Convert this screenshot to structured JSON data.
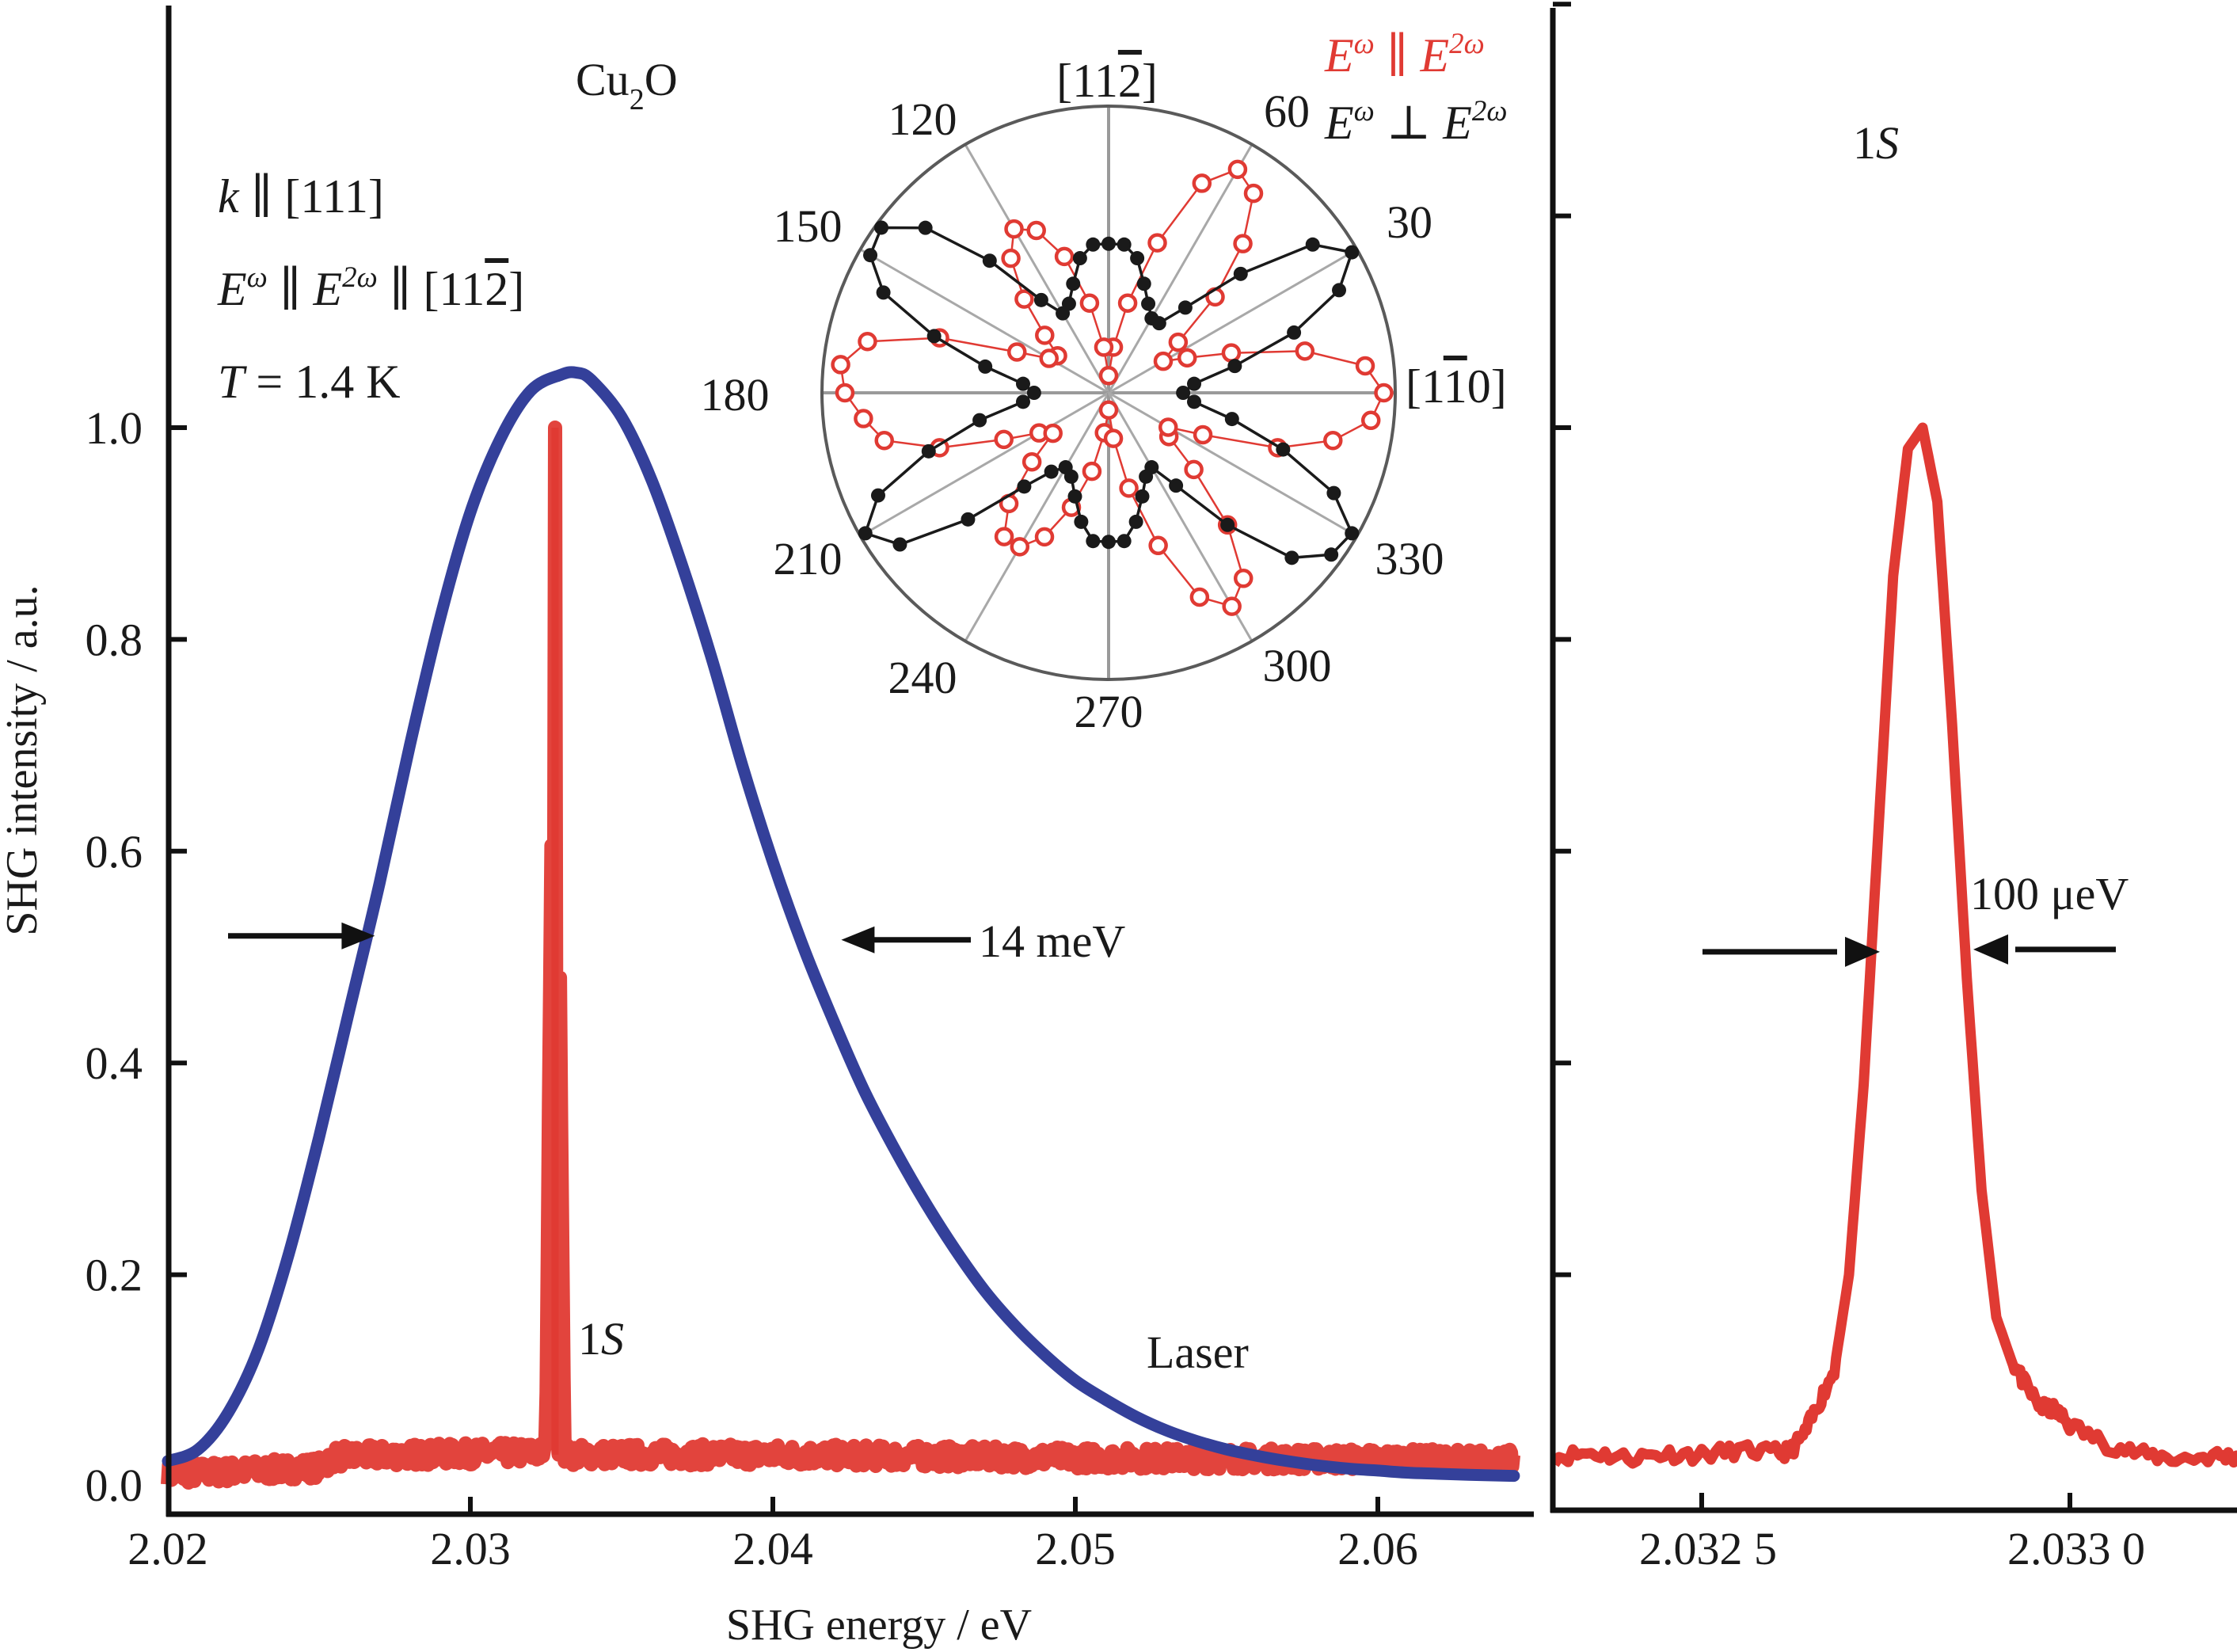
{
  "chart_data": [
    {
      "id": "main-spectrum",
      "type": "line",
      "xlabel": "SHG energy / eV",
      "ylabel": "SHG intensity / a.u.",
      "xlim": [
        2.02,
        2.0645
      ],
      "ylim": [
        0.0,
        1.4
      ],
      "x_ticks": [
        2.02,
        2.03,
        2.04,
        2.05,
        2.06
      ],
      "x_tick_labels": [
        "2.02",
        "2.03",
        "2.04",
        "2.05",
        "2.06"
      ],
      "y_ticks": [
        0.0,
        0.2,
        0.4,
        0.6,
        0.8,
        1.0
      ],
      "y_tick_labels": [
        "0.0",
        "0.2",
        "0.4",
        "0.6",
        "0.8",
        "1.0"
      ],
      "grid": false,
      "series": [
        {
          "name": "Laser",
          "color": "#34409a",
          "x": [
            2.02,
            2.021,
            2.022,
            2.023,
            2.024,
            2.025,
            2.026,
            2.027,
            2.028,
            2.029,
            2.03,
            2.031,
            2.032,
            2.033,
            2.0335,
            2.034,
            2.035,
            2.036,
            2.037,
            2.038,
            2.039,
            2.04,
            2.041,
            2.042,
            2.043,
            2.044,
            2.045,
            2.046,
            2.047,
            2.048,
            2.049,
            2.05,
            2.051,
            2.052,
            2.053,
            2.054,
            2.055,
            2.056,
            2.057,
            2.058,
            2.059,
            2.06,
            2.061,
            2.062,
            2.063,
            2.0645
          ],
          "y": [
            0.024,
            0.035,
            0.07,
            0.13,
            0.22,
            0.33,
            0.45,
            0.57,
            0.7,
            0.82,
            0.92,
            0.99,
            1.035,
            1.05,
            1.052,
            1.045,
            1.01,
            0.95,
            0.87,
            0.78,
            0.68,
            0.59,
            0.51,
            0.44,
            0.375,
            0.32,
            0.27,
            0.225,
            0.185,
            0.152,
            0.124,
            0.1,
            0.082,
            0.066,
            0.053,
            0.043,
            0.035,
            0.029,
            0.024,
            0.02,
            0.017,
            0.015,
            0.013,
            0.012,
            0.011,
            0.01
          ]
        },
        {
          "name": "1S",
          "color": "#e03a33",
          "baseline": [
            [
              2.02,
              0.012
            ],
            [
              2.023,
              0.015
            ],
            [
              2.025,
              0.018
            ],
            [
              2.0255,
              0.028
            ],
            [
              2.028,
              0.03
            ],
            [
              2.0325,
              0.032
            ],
            [
              2.0328,
              1.0
            ],
            [
              2.0331,
              0.03
            ],
            [
              2.04,
              0.03
            ],
            [
              2.05,
              0.027
            ],
            [
              2.0645,
              0.025
            ]
          ],
          "peak_energy": 2.0328,
          "peak_intensity": 1.0,
          "noise_amplitude": 0.01
        }
      ],
      "annotations": {
        "material": {
          "base": "Cu",
          "sub": "2",
          "tail": "O"
        },
        "conditions": [
          {
            "parts": [
              {
                "t": "k",
                "i": true
              },
              {
                "t": " ∥ [111]"
              }
            ]
          },
          {
            "parts": [
              {
                "t": "E",
                "i": true
              },
              {
                "t": "ω",
                "i": true,
                "sup": true
              },
              {
                "t": " ∥ "
              },
              {
                "t": "E",
                "i": true
              },
              {
                "t": "2ω",
                "i": true,
                "sup": true
              },
              {
                "t": " ∥ [11"
              },
              {
                "t": "2",
                "over": true
              },
              {
                "t": "]"
              }
            ]
          },
          {
            "parts": [
              {
                "t": "T",
                "i": true
              },
              {
                "t": " = 1.4 K"
              }
            ]
          }
        ],
        "peak_label": {
          "num": "1",
          "letter": "S"
        },
        "laser_label": "Laser",
        "fwhm_label": "14 meV",
        "fwhm_level": 0.52,
        "fwhm_left_energy": 2.027,
        "fwhm_right_energy": 2.042
      }
    },
    {
      "id": "zoom-spectrum",
      "type": "line",
      "xlim": [
        2.0323,
        2.03323
      ],
      "ylim": [
        0.0,
        1.4
      ],
      "x_ticks": [
        2.0325,
        2.033
      ],
      "x_tick_labels": [
        "2.032 5",
        "2.033 0"
      ],
      "y_ticks": [
        0.2,
        0.4,
        0.6,
        0.8,
        1.0,
        1.2,
        1.4
      ],
      "grid": false,
      "series": [
        {
          "name": "1S",
          "color": "#e03a33",
          "x": [
            2.0323,
            2.03235,
            2.0324,
            2.03245,
            2.0325,
            2.03255,
            2.0326,
            2.03262,
            2.03264,
            2.03266,
            2.03268,
            2.0327,
            2.03272,
            2.03274,
            2.03276,
            2.03278,
            2.0328,
            2.03282,
            2.03284,
            2.03286,
            2.03288,
            2.0329,
            2.03292,
            2.03294,
            2.03296,
            2.03298,
            2.033,
            2.03305,
            2.0331,
            2.03315,
            2.0332,
            2.03323
          ],
          "y": [
            0.028,
            0.032,
            0.027,
            0.031,
            0.03,
            0.034,
            0.032,
            0.033,
            0.05,
            0.08,
            0.11,
            0.2,
            0.38,
            0.62,
            0.86,
            0.98,
            1.0,
            0.93,
            0.72,
            0.48,
            0.28,
            0.16,
            0.12,
            0.095,
            0.075,
            0.072,
            0.058,
            0.04,
            0.03,
            0.026,
            0.029,
            0.028
          ]
        }
      ],
      "annotations": {
        "peak_label": {
          "num": "1",
          "letter": "S"
        },
        "fwhm_label": "100 μeV",
        "fwhm_level": 0.505,
        "fwhm_left_energy": 2.03273,
        "fwhm_right_energy": 2.03283
      }
    },
    {
      "id": "polar-inset",
      "type": "scatter",
      "subtype": "polar",
      "angle_labels": [
        {
          "deg": 30,
          "label": "30"
        },
        {
          "deg": 60,
          "label": "60"
        },
        {
          "deg": 120,
          "label": "120"
        },
        {
          "deg": 150,
          "label": "150"
        },
        {
          "deg": 180,
          "label": "180"
        },
        {
          "deg": 210,
          "label": "210"
        },
        {
          "deg": 240,
          "label": "240"
        },
        {
          "deg": 270,
          "label": "270"
        },
        {
          "deg": 300,
          "label": "300"
        },
        {
          "deg": 330,
          "label": "330"
        }
      ],
      "direction_labels": {
        "top": {
          "pre": "[11",
          "over": "2",
          "post": "]"
        },
        "right": {
          "pre": "[1",
          "over": "1",
          "post": "0]"
        }
      },
      "spokes_deg": [
        0,
        30,
        60,
        90,
        120,
        150,
        180,
        210,
        240,
        270,
        300,
        330
      ],
      "rmax": 1.0,
      "legend": [
        {
          "key": "parallel",
          "color": "#e03a33",
          "marker": "open-circle",
          "label_parts": [
            {
              "t": "E",
              "i": true
            },
            {
              "t": "ω",
              "i": true,
              "sup": true
            },
            {
              "t": " ∥ "
            },
            {
              "t": "E",
              "i": true
            },
            {
              "t": "2ω",
              "i": true,
              "sup": true
            }
          ]
        },
        {
          "key": "perpendicular",
          "color": "#1a1a1a",
          "marker": "filled-circle",
          "label_parts": [
            {
              "t": "E",
              "i": true
            },
            {
              "t": "ω",
              "i": true,
              "sup": true
            },
            {
              "t": " ⊥ "
            },
            {
              "t": "E",
              "i": true
            },
            {
              "t": "2ω",
              "i": true,
              "sup": true
            }
          ]
        }
      ],
      "legend_position": "top-right",
      "series": [
        {
          "name": "E∥",
          "color": "#e03a33",
          "angles_deg": [
            0,
            6,
            12,
            18,
            24,
            30,
            36,
            42,
            48,
            54,
            60,
            66,
            72,
            78,
            84,
            90,
            96,
            102,
            108,
            114,
            120,
            126,
            132,
            138,
            144,
            150,
            156,
            162,
            168,
            174,
            180,
            186,
            192,
            198,
            204,
            210,
            216,
            222,
            228,
            234,
            240,
            246,
            252,
            258,
            264,
            270,
            276,
            282,
            288,
            294,
            300,
            306,
            312,
            318,
            324,
            330,
            336,
            342,
            348,
            354
          ],
          "r": [
            0.96,
            0.9,
            0.7,
            0.45,
            0.3,
            0.22,
            0.3,
            0.5,
            0.7,
            0.86,
            0.9,
            0.8,
            0.55,
            0.32,
            0.16,
            0.06,
            0.16,
            0.32,
            0.5,
            0.62,
            0.66,
            0.58,
            0.44,
            0.3,
            0.22,
            0.24,
            0.35,
            0.62,
            0.86,
            0.94,
            0.92,
            0.86,
            0.8,
            0.62,
            0.4,
            0.28,
            0.24,
            0.36,
            0.52,
            0.62,
            0.62,
            0.55,
            0.42,
            0.28,
            0.14,
            0.06,
            0.16,
            0.34,
            0.56,
            0.78,
            0.86,
            0.8,
            0.62,
            0.4,
            0.26,
            0.24,
            0.36,
            0.62,
            0.8,
            0.92
          ]
        },
        {
          "name": "E⊥",
          "color": "#1a1a1a",
          "angles_deg": [
            0,
            6,
            12,
            18,
            24,
            30,
            36,
            42,
            48,
            54,
            60,
            66,
            72,
            78,
            84,
            90,
            96,
            102,
            108,
            114,
            120,
            126,
            132,
            138,
            144,
            150,
            156,
            162,
            168,
            174,
            180,
            186,
            192,
            198,
            204,
            210,
            216,
            222,
            228,
            234,
            240,
            246,
            252,
            258,
            264,
            270,
            276,
            282,
            288,
            294,
            300,
            306,
            312,
            318,
            324,
            330,
            336,
            342,
            348,
            354
          ],
          "r": [
            0.26,
            0.3,
            0.45,
            0.68,
            0.88,
            0.98,
            0.88,
            0.62,
            0.4,
            0.3,
            0.3,
            0.34,
            0.4,
            0.48,
            0.52,
            0.52,
            0.52,
            0.48,
            0.4,
            0.34,
            0.32,
            0.4,
            0.62,
            0.86,
            0.98,
            0.96,
            0.86,
            0.64,
            0.44,
            0.3,
            0.26,
            0.3,
            0.46,
            0.66,
            0.88,
            0.98,
            0.9,
            0.66,
            0.44,
            0.34,
            0.3,
            0.32,
            0.38,
            0.46,
            0.52,
            0.52,
            0.52,
            0.46,
            0.38,
            0.32,
            0.3,
            0.4,
            0.62,
            0.86,
            0.96,
            0.98,
            0.86,
            0.64,
            0.44,
            0.3
          ]
        }
      ]
    }
  ]
}
